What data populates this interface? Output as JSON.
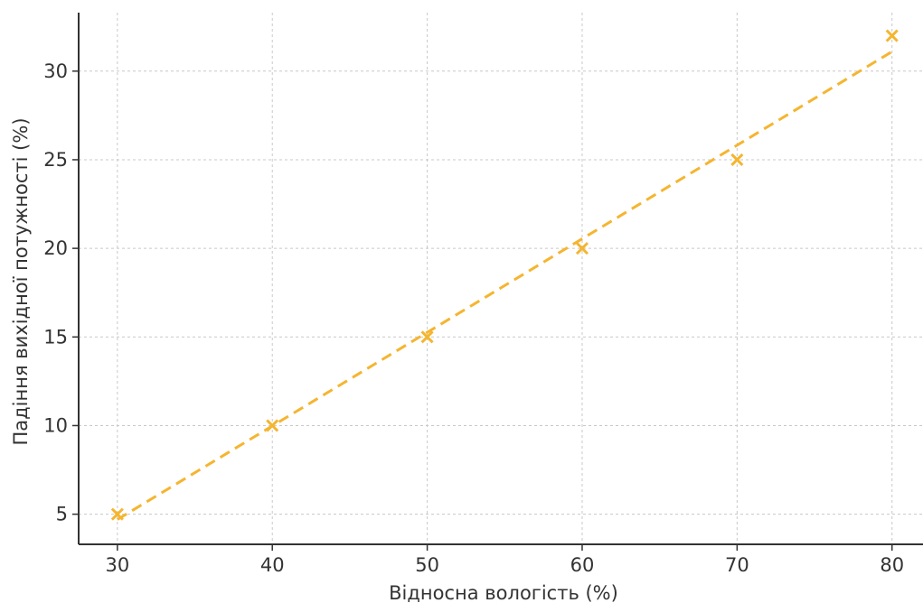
{
  "chart_data": {
    "type": "scatter",
    "title": "",
    "xlabel": "Відносна вологість (%)",
    "ylabel": "Падіння вихідної потужності (%)",
    "xlim": [
      27.5,
      82
    ],
    "ylim": [
      3.3,
      33.3
    ],
    "xticks": [
      30,
      40,
      50,
      60,
      70,
      80
    ],
    "yticks": [
      5,
      10,
      15,
      20,
      25,
      30
    ],
    "grid": true,
    "series": [
      {
        "marker": "x",
        "color": "#F5B530",
        "x": [
          30,
          40,
          50,
          60,
          70,
          80
        ],
        "y": [
          5,
          10,
          15,
          20,
          25,
          32
        ]
      }
    ],
    "trendline": {
      "style": "dashed",
      "color": "#F5B530",
      "x": [
        30,
        80
      ],
      "y": [
        4.7,
        31.1
      ]
    }
  }
}
